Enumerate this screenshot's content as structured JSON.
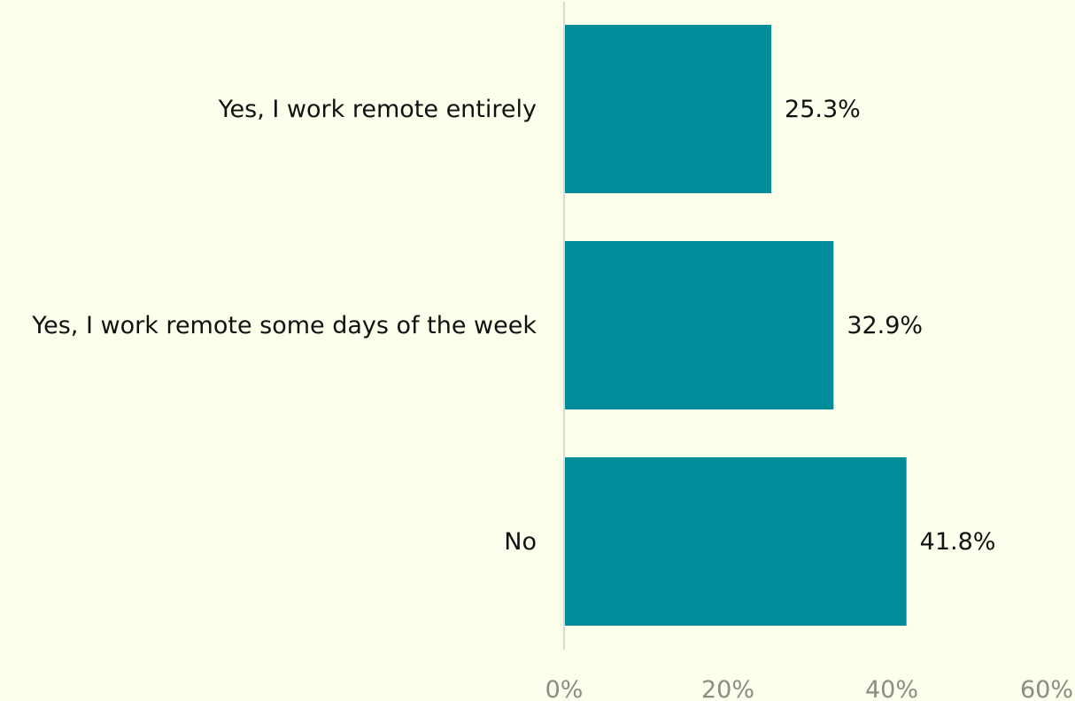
{
  "chart_data": {
    "type": "bar",
    "orientation": "horizontal",
    "categories": [
      "Yes, I work remote entirely",
      "Yes, I work remote some days of the week",
      "No"
    ],
    "values": [
      25.3,
      32.9,
      41.8
    ],
    "value_labels": [
      "25.3%",
      "32.9%",
      "41.8%"
    ],
    "xlim": [
      0,
      60
    ],
    "xticks": [
      0,
      20,
      40,
      60
    ],
    "xtick_labels": [
      "0%",
      "20%",
      "40%",
      "60%"
    ],
    "title": "",
    "xlabel": "",
    "ylabel": "",
    "grid": false,
    "colors": {
      "bar": "#008c99",
      "axis": "#d9d9d0",
      "background": "#fdfeec",
      "text": "#111111",
      "tick_text": "#8c8c84"
    }
  }
}
